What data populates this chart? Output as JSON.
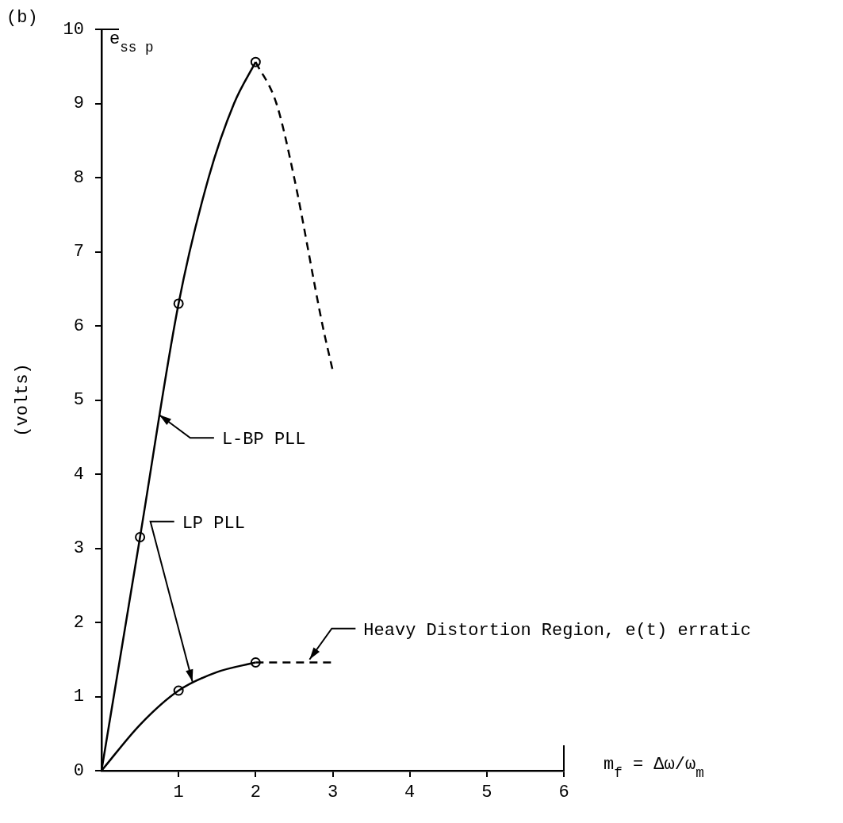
{
  "chart_data": {
    "type": "line",
    "title": "(b)",
    "xlabel": "m$_{f}$ = Δω/ω$_{m}$",
    "ylabel": "(volts)",
    "xlim": [
      0,
      6
    ],
    "xticks": [
      1,
      2,
      3,
      4,
      5,
      6
    ],
    "ylim": [
      0,
      10
    ],
    "yticks": [
      0,
      1,
      2,
      3,
      4,
      5,
      6,
      7,
      8,
      9,
      10
    ],
    "grid": false,
    "legend": false,
    "series": [
      {
        "color": "#000000",
        "marker": "none",
        "line_style": "solid",
        "x": [
          0,
          0.5,
          1,
          1.39,
          1.72,
          2
        ],
        "values": [
          0,
          3.15,
          6.3,
          8,
          9,
          9.56
        ]
      },
      {
        "color": "#000000",
        "marker": "none",
        "line_style": "dashed",
        "x": [
          2,
          2.27,
          2.5,
          2.87,
          3
        ],
        "values": [
          9.56,
          9,
          8,
          6,
          5.4
        ]
      },
      {
        "type": "scatter",
        "color": "#000000",
        "marker": "circle",
        "x": [
          0.5,
          1,
          2
        ],
        "values": [
          3.15,
          6.3,
          9.56
        ]
      },
      {
        "color": "#000000",
        "marker": "none",
        "line_style": "solid",
        "x": [
          0,
          0.5,
          1,
          1.5,
          2
        ],
        "values": [
          0,
          0.62,
          1.08,
          1.33,
          1.46
        ]
      },
      {
        "color": "#000000",
        "marker": "none",
        "line_style": "dashed",
        "x": [
          2,
          3
        ],
        "values": [
          1.46,
          1.46
        ]
      },
      {
        "type": "scatter",
        "color": "#000000",
        "marker": "circle",
        "x": [
          1,
          2
        ],
        "values": [
          1.08,
          1.46
        ]
      }
    ],
    "annotations": [
      "e$_{ss p}$",
      {
        "text": "L-BP PLL",
        "x": 0.75,
        "y": 4.8
      },
      {
        "text": "LP PLL",
        "x": 1.18,
        "y": 1.2
      },
      {
        "text": "Heavy Distortion Region, e(t) erratic",
        "x": 2.7,
        "y": 1.5
      }
    ]
  }
}
